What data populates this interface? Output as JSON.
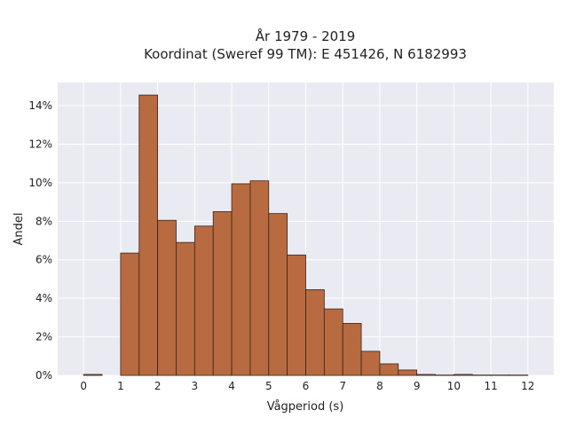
{
  "chart_data": {
    "type": "bar",
    "title_line1": "År 1979 - 2019",
    "title_line2": "Koordinat (Sweref 99 TM): E 451426, N 6182993",
    "xlabel": "Vågperiod (s)",
    "ylabel": "Andel",
    "xlim": [
      -0.7,
      12.7
    ],
    "ylim": [
      0,
      15.2
    ],
    "x_ticks": [
      0,
      1,
      2,
      3,
      4,
      5,
      6,
      7,
      8,
      9,
      10,
      11,
      12
    ],
    "x_tick_labels": [
      "0",
      "1",
      "2",
      "3",
      "4",
      "5",
      "6",
      "7",
      "8",
      "9",
      "10",
      "11",
      "12"
    ],
    "y_ticks": [
      0,
      2,
      4,
      6,
      8,
      10,
      12,
      14
    ],
    "y_tick_labels": [
      "0%",
      "2%",
      "4%",
      "6%",
      "8%",
      "10%",
      "12%",
      "14%"
    ],
    "bin_width": 0.5,
    "bins": [
      {
        "start": 0.0,
        "value": 0.05
      },
      {
        "start": 0.5,
        "value": 0.0
      },
      {
        "start": 1.0,
        "value": 6.35
      },
      {
        "start": 1.5,
        "value": 14.55
      },
      {
        "start": 2.0,
        "value": 8.05
      },
      {
        "start": 2.5,
        "value": 6.9
      },
      {
        "start": 3.0,
        "value": 7.75
      },
      {
        "start": 3.5,
        "value": 8.5
      },
      {
        "start": 4.0,
        "value": 9.95
      },
      {
        "start": 4.5,
        "value": 10.1
      },
      {
        "start": 5.0,
        "value": 8.4
      },
      {
        "start": 5.5,
        "value": 6.25
      },
      {
        "start": 6.0,
        "value": 4.45
      },
      {
        "start": 6.5,
        "value": 3.45
      },
      {
        "start": 7.0,
        "value": 2.7
      },
      {
        "start": 7.5,
        "value": 1.25
      },
      {
        "start": 8.0,
        "value": 0.6
      },
      {
        "start": 8.5,
        "value": 0.28
      },
      {
        "start": 9.0,
        "value": 0.05
      },
      {
        "start": 9.5,
        "value": 0.02
      },
      {
        "start": 10.0,
        "value": 0.05
      },
      {
        "start": 10.5,
        "value": 0.02
      },
      {
        "start": 11.0,
        "value": 0.02
      },
      {
        "start": 11.5,
        "value": 0.02
      }
    ],
    "bar_color": "#b86a40",
    "bar_edge_color": "#3a2418",
    "plot_background": "#eaeaf2",
    "grid": true,
    "grid_color": "#ffffff"
  }
}
